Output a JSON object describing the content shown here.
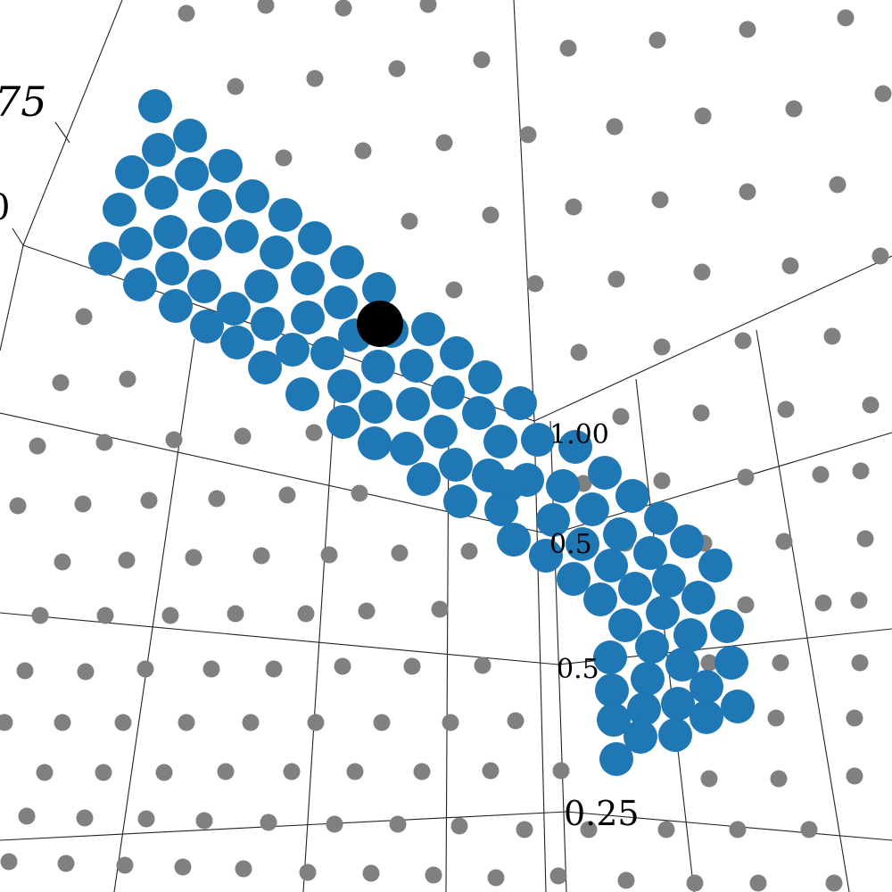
{
  "colors": {
    "background_points": "#808080",
    "highlight_points": "#1f77b4",
    "selected_point": "#000000",
    "grid": "#222222"
  },
  "chart_data": {
    "type": "scatter",
    "projection": "3d",
    "grid": true,
    "tick_labels": [
      "75",
      "0",
      "1.00",
      "0.5",
      "0.5",
      "0.25"
    ],
    "series": [
      {
        "role": "background",
        "color": "#808080",
        "points": [
          [
            209,
            15
          ],
          [
            298,
            6
          ],
          [
            385,
            9
          ],
          [
            480,
            5
          ],
          [
            948,
            20
          ],
          [
            838,
            33
          ],
          [
            737,
            45
          ],
          [
            637,
            54
          ],
          [
            540,
            67
          ],
          [
            445,
            77
          ],
          [
            353,
            88
          ],
          [
            264,
            97
          ],
          [
            990,
            105
          ],
          [
            890,
            122
          ],
          [
            788,
            130
          ],
          [
            689,
            142
          ],
          [
            592,
            151
          ],
          [
            498,
            160
          ],
          [
            407,
            169
          ],
          [
            318,
            177
          ],
          [
            939,
            207
          ],
          [
            838,
            215
          ],
          [
            740,
            224
          ],
          [
            643,
            232
          ],
          [
            550,
            241
          ],
          [
            459,
            248
          ],
          [
            987,
            287
          ],
          [
            886,
            298
          ],
          [
            787,
            305
          ],
          [
            691,
            313
          ],
          [
            600,
            318
          ],
          [
            509,
            325
          ],
          [
            94,
            355
          ],
          [
            933,
            377
          ],
          [
            833,
            382
          ],
          [
            742,
            389
          ],
          [
            649,
            395
          ],
          [
            68,
            429
          ],
          [
            143,
            425
          ],
          [
            976,
            454
          ],
          [
            881,
            459
          ],
          [
            786,
            463
          ],
          [
            696,
            467
          ],
          [
            42,
            500
          ],
          [
            117,
            496
          ],
          [
            195,
            493
          ],
          [
            272,
            489
          ],
          [
            352,
            485
          ],
          [
            965,
            528
          ],
          [
            920,
            532
          ],
          [
            836,
            535
          ],
          [
            742,
            539
          ],
          [
            654,
            542
          ],
          [
            569,
            546
          ],
          [
            20,
            567
          ],
          [
            93,
            565
          ],
          [
            167,
            561
          ],
          [
            243,
            559
          ],
          [
            322,
            555
          ],
          [
            403,
            553
          ],
          [
            970,
            604
          ],
          [
            879,
            607
          ],
          [
            789,
            609
          ],
          [
            701,
            609
          ],
          [
            526,
            618
          ],
          [
            448,
            620
          ],
          [
            369,
            622
          ],
          [
            293,
            623
          ],
          [
            217,
            625
          ],
          [
            142,
            628
          ],
          [
            70,
            630
          ],
          [
            963,
            673
          ],
          [
            923,
            676
          ],
          [
            836,
            678
          ],
          [
            493,
            683
          ],
          [
            411,
            685
          ],
          [
            343,
            688
          ],
          [
            264,
            688
          ],
          [
            191,
            690
          ],
          [
            118,
            690
          ],
          [
            45,
            690
          ],
          [
            964,
            743
          ],
          [
            875,
            743
          ],
          [
            795,
            743
          ],
          [
            541,
            746
          ],
          [
            462,
            747
          ],
          [
            384,
            747
          ],
          [
            307,
            750
          ],
          [
            237,
            750
          ],
          [
            163,
            750
          ],
          [
            96,
            753
          ],
          [
            28,
            752
          ],
          [
            958,
            805
          ],
          [
            870,
            805
          ],
          [
            795,
            805
          ],
          [
            578,
            808
          ],
          [
            505,
            810
          ],
          [
            428,
            810
          ],
          [
            354,
            810
          ],
          [
            281,
            810
          ],
          [
            209,
            810
          ],
          [
            138,
            810
          ],
          [
            70,
            810
          ],
          [
            5,
            810
          ],
          [
            958,
            870
          ],
          [
            873,
            873
          ],
          [
            795,
            873
          ],
          [
            629,
            864
          ],
          [
            550,
            864
          ],
          [
            473,
            865
          ],
          [
            398,
            865
          ],
          [
            327,
            865
          ],
          [
            253,
            865
          ],
          [
            184,
            866
          ],
          [
            116,
            866
          ],
          [
            50,
            866
          ],
          [
            907,
            930
          ],
          [
            827,
            930
          ],
          [
            747,
            930
          ],
          [
            660,
            930
          ],
          [
            588,
            930
          ],
          [
            515,
            926
          ],
          [
            446,
            924
          ],
          [
            375,
            924
          ],
          [
            301,
            922
          ],
          [
            229,
            920
          ],
          [
            164,
            918
          ],
          [
            95,
            917
          ],
          [
            30,
            915
          ],
          [
            935,
            990
          ],
          [
            850,
            990
          ],
          [
            779,
            990
          ],
          [
            702,
            987
          ],
          [
            626,
            982
          ],
          [
            556,
            984
          ],
          [
            486,
            981
          ],
          [
            416,
            979
          ],
          [
            345,
            978
          ],
          [
            273,
            974
          ],
          [
            205,
            972
          ],
          [
            140,
            970
          ],
          [
            74,
            968
          ],
          [
            10,
            966
          ]
        ]
      },
      {
        "role": "highlight",
        "color": "#1f77b4",
        "points": [
          [
            174,
            119
          ],
          [
            213,
            152
          ],
          [
            178,
            168
          ],
          [
            253,
            186
          ],
          [
            148,
            193
          ],
          [
            215,
            195
          ],
          [
            181,
            216
          ],
          [
            283,
            220
          ],
          [
            134,
            235
          ],
          [
            241,
            231
          ],
          [
            320,
            241
          ],
          [
            191,
            260
          ],
          [
            271,
            265
          ],
          [
            353,
            267
          ],
          [
            152,
            273
          ],
          [
            230,
            273
          ],
          [
            310,
            283
          ],
          [
            389,
            294
          ],
          [
            118,
            290
          ],
          [
            193,
            301
          ],
          [
            345,
            312
          ],
          [
            157,
            319
          ],
          [
            229,
            321
          ],
          [
            293,
            321
          ],
          [
            425,
            324
          ],
          [
            382,
            339
          ],
          [
            197,
            343
          ],
          [
            262,
            346
          ],
          [
            345,
            356
          ],
          [
            232,
            366
          ],
          [
            300,
            363
          ],
          [
            398,
            376
          ],
          [
            439,
            371
          ],
          [
            480,
            369
          ],
          [
            266,
            384
          ],
          [
            328,
            392
          ],
          [
            367,
            396
          ],
          [
            512,
            396
          ],
          [
            424,
            411
          ],
          [
            467,
            410
          ],
          [
            544,
            423
          ],
          [
            297,
            412
          ],
          [
            386,
            433
          ],
          [
            502,
            440
          ],
          [
            339,
            442
          ],
          [
            583,
            452
          ],
          [
            421,
            456
          ],
          [
            463,
            453
          ],
          [
            537,
            463
          ],
          [
            385,
            473
          ],
          [
            494,
            484
          ],
          [
            420,
            497
          ],
          [
            456,
            503
          ],
          [
            561,
            495
          ],
          [
            603,
            493
          ],
          [
            645,
            501
          ],
          [
            511,
            521
          ],
          [
            678,
            530
          ],
          [
            475,
            537
          ],
          [
            548,
            533
          ],
          [
            591,
            538
          ],
          [
            631,
            545
          ],
          [
            568,
            545
          ],
          [
            709,
            556
          ],
          [
            516,
            562
          ],
          [
            664,
            571
          ],
          [
            562,
            571
          ],
          [
            741,
            581
          ],
          [
            620,
            583
          ],
          [
            695,
            599
          ],
          [
            576,
            605
          ],
          [
            770,
            607
          ],
          [
            653,
            610
          ],
          [
            729,
            620
          ],
          [
            612,
            623
          ],
          [
            685,
            634
          ],
          [
            802,
            634
          ],
          [
            643,
            649
          ],
          [
            750,
            651
          ],
          [
            712,
            660
          ],
          [
            673,
            672
          ],
          [
            783,
            670
          ],
          [
            743,
            687
          ],
          [
            701,
            701
          ],
          [
            815,
            702
          ],
          [
            774,
            712
          ],
          [
            731,
            725
          ],
          [
            684,
            737
          ],
          [
            765,
            745
          ],
          [
            820,
            743
          ],
          [
            726,
            761
          ],
          [
            686,
            774
          ],
          [
            792,
            770
          ],
          [
            760,
            789
          ],
          [
            722,
            795
          ],
          [
            827,
            792
          ],
          [
            688,
            807
          ],
          [
            792,
            804
          ],
          [
            718,
            826
          ],
          [
            757,
            824
          ],
          [
            691,
            851
          ]
        ]
      },
      {
        "role": "selected",
        "color": "#000000",
        "points": [
          [
            426,
            363
          ]
        ]
      }
    ]
  }
}
